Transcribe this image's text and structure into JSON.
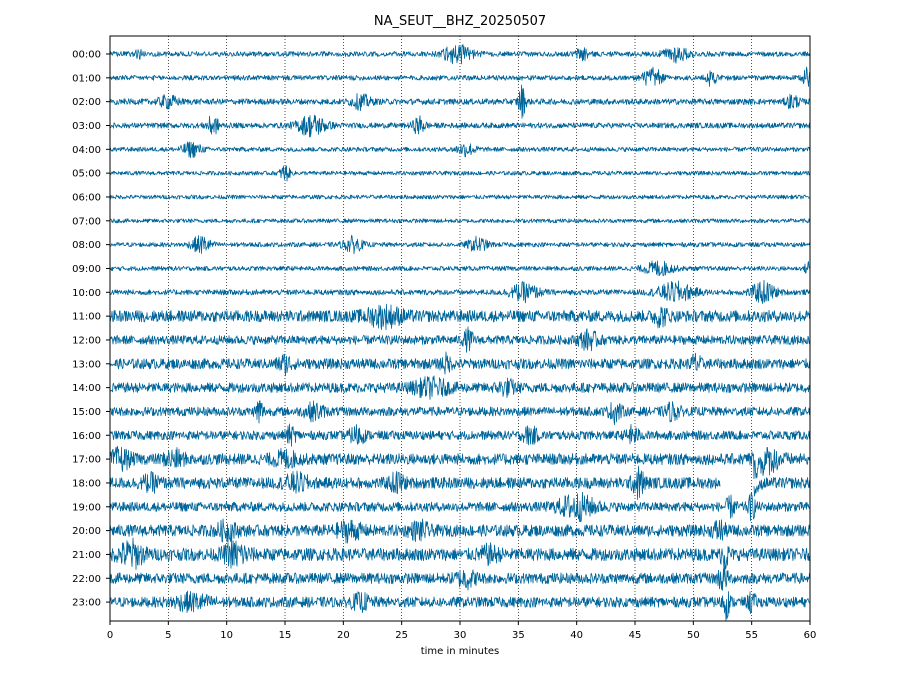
{
  "chart_data": {
    "type": "line",
    "title": "NA_SEUT__BHZ_20250507",
    "xlabel": "time in minutes",
    "ylabel": "",
    "xlim": [
      0,
      60
    ],
    "xticks": [
      "0",
      "5",
      "10",
      "15",
      "20",
      "25",
      "30",
      "35",
      "40",
      "45",
      "50",
      "55",
      "60"
    ],
    "grid": "vertical dotted at x ticks",
    "trace_color": "#00669b",
    "rows": [
      {
        "label": "00:00",
        "amp": 0.55,
        "events": [
          [
            2.5,
            1.2,
            0.3
          ],
          [
            29.8,
            2.0,
            1.2
          ],
          [
            40.5,
            1.5,
            0.5
          ],
          [
            48.5,
            1.6,
            1.0
          ]
        ]
      },
      {
        "label": "01:00",
        "amp": 0.55,
        "events": [
          [
            46.5,
            2.0,
            0.8
          ],
          [
            51.5,
            1.8,
            0.4
          ],
          [
            59.7,
            2.0,
            0.3
          ]
        ]
      },
      {
        "label": "02:00",
        "amp": 0.65,
        "events": [
          [
            5.0,
            1.2,
            0.8
          ],
          [
            21.5,
            1.4,
            0.8
          ],
          [
            35.3,
            3.5,
            0.3
          ],
          [
            58.5,
            1.5,
            0.5
          ]
        ]
      },
      {
        "label": "03:00",
        "amp": 0.6,
        "events": [
          [
            8.8,
            2.0,
            0.5
          ],
          [
            17.3,
            2.2,
            1.2
          ],
          [
            26.5,
            1.8,
            0.5
          ]
        ]
      },
      {
        "label": "04:00",
        "amp": 0.5,
        "events": [
          [
            7.0,
            1.5,
            0.8
          ],
          [
            30.5,
            1.3,
            0.8
          ]
        ]
      },
      {
        "label": "05:00",
        "amp": 0.45,
        "events": [
          [
            15.0,
            1.8,
            0.4
          ]
        ]
      },
      {
        "label": "06:00",
        "amp": 0.45,
        "events": []
      },
      {
        "label": "07:00",
        "amp": 0.45,
        "events": []
      },
      {
        "label": "08:00",
        "amp": 0.5,
        "events": [
          [
            7.8,
            1.8,
            0.8
          ],
          [
            20.8,
            1.6,
            0.8
          ],
          [
            31.5,
            1.5,
            0.8
          ]
        ]
      },
      {
        "label": "09:00",
        "amp": 0.5,
        "events": [
          [
            47.0,
            1.5,
            1.2
          ],
          [
            59.8,
            2.0,
            0.2
          ]
        ]
      },
      {
        "label": "10:00",
        "amp": 0.6,
        "events": [
          [
            35.5,
            1.8,
            1.2
          ],
          [
            48.5,
            2.0,
            1.5
          ],
          [
            56.0,
            2.2,
            1.0
          ]
        ]
      },
      {
        "label": "11:00",
        "amp": 1.3,
        "events": [
          [
            23.5,
            1.8,
            1.5
          ],
          [
            47.2,
            1.6,
            0.6
          ]
        ]
      },
      {
        "label": "12:00",
        "amp": 1.0,
        "events": [
          [
            30.7,
            2.0,
            0.4
          ],
          [
            41.0,
            1.7,
            0.8
          ]
        ]
      },
      {
        "label": "13:00",
        "amp": 1.15,
        "events": [
          [
            15.0,
            1.6,
            0.6
          ],
          [
            28.8,
            1.6,
            0.4
          ],
          [
            50.2,
            1.8,
            0.4
          ]
        ]
      },
      {
        "label": "14:00",
        "amp": 1.1,
        "events": [
          [
            27.5,
            1.6,
            1.5
          ],
          [
            34.0,
            1.3,
            0.8
          ]
        ]
      },
      {
        "label": "15:00",
        "amp": 1.0,
        "events": [
          [
            12.8,
            2.8,
            0.3
          ],
          [
            17.5,
            1.5,
            0.8
          ],
          [
            43.3,
            2.0,
            0.5
          ],
          [
            48.2,
            1.6,
            0.6
          ]
        ]
      },
      {
        "label": "16:00",
        "amp": 1.0,
        "events": [
          [
            15.5,
            1.7,
            0.4
          ],
          [
            21.2,
            1.8,
            0.6
          ],
          [
            36.0,
            1.6,
            0.6
          ],
          [
            44.8,
            1.6,
            0.5
          ]
        ]
      },
      {
        "label": "17:00",
        "amp": 1.25,
        "events": [
          [
            0.9,
            1.9,
            0.8
          ],
          [
            5.5,
            1.5,
            0.8
          ],
          [
            15.0,
            1.4,
            1.0
          ],
          [
            56.3,
            2.2,
            1.2
          ]
        ]
      },
      {
        "label": "18:00",
        "amp": 1.25,
        "events": [
          [
            3.5,
            1.3,
            0.8
          ],
          [
            16.0,
            1.5,
            1.0
          ],
          [
            24.6,
            1.8,
            0.6
          ],
          [
            45.3,
            2.8,
            0.5
          ]
        ]
      },
      {
        "label": "19:00",
        "amp": 1.05,
        "events": [
          [
            40.0,
            2.5,
            1.5
          ],
          [
            53.2,
            1.8,
            0.4
          ],
          [
            55.0,
            2.5,
            0.3
          ]
        ]
      },
      {
        "label": "20:00",
        "amp": 1.3,
        "events": [
          [
            10.0,
            1.6,
            0.8
          ],
          [
            20.5,
            1.6,
            1.0
          ],
          [
            26.5,
            1.5,
            0.8
          ],
          [
            52.2,
            1.8,
            0.5
          ]
        ]
      },
      {
        "label": "21:00",
        "amp": 1.4,
        "events": [
          [
            1.8,
            2.5,
            1.0
          ],
          [
            10.8,
            2.2,
            1.0
          ],
          [
            32.5,
            1.3,
            0.8
          ],
          [
            52.7,
            3.0,
            0.3
          ]
        ]
      },
      {
        "label": "22:00",
        "amp": 1.2,
        "events": [
          [
            30.5,
            1.6,
            0.8
          ],
          [
            52.5,
            2.2,
            0.4
          ]
        ]
      },
      {
        "label": "23:00",
        "amp": 1.15,
        "events": [
          [
            7.0,
            1.4,
            1.5
          ],
          [
            21.5,
            1.3,
            0.8
          ],
          [
            52.8,
            3.0,
            0.3
          ],
          [
            55.0,
            2.0,
            0.3
          ]
        ]
      }
    ],
    "anomalies": [
      {
        "row": "18:00",
        "type": "gap",
        "x_start": 52.3,
        "x_end": 55.2
      },
      {
        "row": "17:00",
        "type": "decay",
        "x_start": 55.2,
        "x_end": 57.2
      }
    ]
  }
}
